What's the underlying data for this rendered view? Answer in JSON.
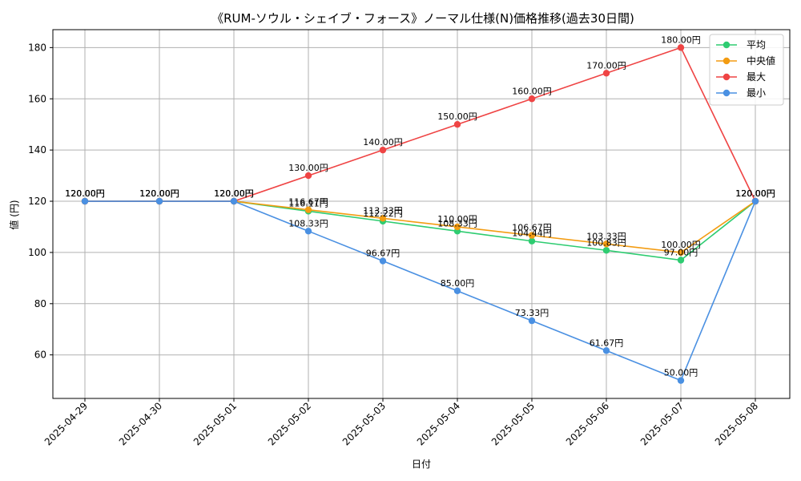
{
  "chart_data": {
    "type": "line",
    "title": "《RUM-ソウル・シェイブ・フォース》ノーマル仕様(N)価格推移(過去30日間)",
    "xlabel": "日付",
    "ylabel": "値 (円)",
    "ylim": [
      43,
      187
    ],
    "yticks": [
      60,
      80,
      100,
      120,
      140,
      160,
      180
    ],
    "grid": true,
    "legend_position": "top-right",
    "categories": [
      "2025-04-29",
      "2025-04-30",
      "2025-05-01",
      "2025-05-02",
      "2025-05-03",
      "2025-05-04",
      "2025-05-05",
      "2025-05-06",
      "2025-05-07",
      "2025-05-08"
    ],
    "series": [
      {
        "name": "平均",
        "color": "#2ecc71",
        "values": [
          120,
          120,
          120,
          116.11,
          112.22,
          108.33,
          104.44,
          100.83,
          97.0,
          120
        ],
        "labels": [
          "120.00円",
          "120.00円",
          "120.00円",
          "116.11円",
          "112.22円",
          "108.33円",
          "104.44円",
          "100.83円",
          "97.00円",
          "120.00円"
        ]
      },
      {
        "name": "中央値",
        "color": "#f39c12",
        "values": [
          120,
          120,
          120,
          116.67,
          113.33,
          110.0,
          106.67,
          103.33,
          100.0,
          120
        ],
        "labels": [
          "120.00円",
          "120.00円",
          "120.00円",
          "116.67円",
          "113.33円",
          "110.00円",
          "106.67円",
          "103.33円",
          "100.00円",
          "120.00円"
        ]
      },
      {
        "name": "最大",
        "color": "#ef4444",
        "values": [
          120,
          120,
          120,
          130,
          140,
          150,
          160,
          170,
          180,
          120
        ],
        "labels": [
          "120.00円",
          "120.00円",
          "120.00円",
          "130.00円",
          "140.00円",
          "150.00円",
          "160.00円",
          "170.00円",
          "180.00円",
          "120.00円"
        ]
      },
      {
        "name": "最小",
        "color": "#4a90e2",
        "values": [
          120,
          120,
          120,
          108.33,
          96.67,
          85.0,
          73.33,
          61.67,
          50.0,
          120
        ],
        "labels": [
          "120.00円",
          "120.00円",
          "120.00円",
          "108.33円",
          "96.67円",
          "85.00円",
          "73.33円",
          "61.67円",
          "50.00円",
          "120.00円"
        ]
      }
    ]
  }
}
